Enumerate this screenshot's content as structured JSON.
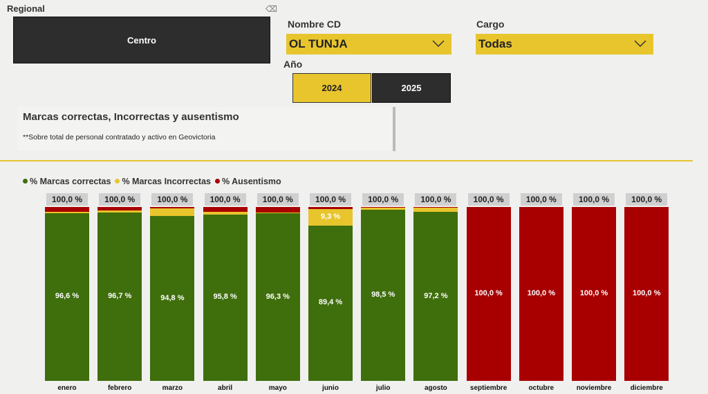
{
  "filters": {
    "regional": {
      "label": "Regional",
      "value": "Centro"
    },
    "nombre_cd": {
      "label": "Nombre CD",
      "value": "OL TUNJA"
    },
    "cargo": {
      "label": "Cargo",
      "value": "Todas"
    },
    "anio": {
      "label": "Año",
      "options": [
        "2024",
        "2025"
      ],
      "selected": "2024"
    }
  },
  "card": {
    "title": "Marcas correctas, Incorrectas y ausentismo",
    "subtitle": "**Sobre total de personal contratado y activo en Geovictoria"
  },
  "colors": {
    "correctas": "#3f6e0c",
    "incorrectas": "#e8c52d",
    "ausentismo": "#a80000"
  },
  "chart_data": {
    "type": "bar",
    "stacked": true,
    "legend_position": "top-left",
    "categories": [
      "enero",
      "febrero",
      "marzo",
      "abril",
      "mayo",
      "junio",
      "julio",
      "agosto",
      "septiembre",
      "octubre",
      "noviembre",
      "diciembre"
    ],
    "series": [
      {
        "name": "% Marcas correctas",
        "values": [
          96.6,
          96.7,
          94.8,
          95.8,
          96.3,
          89.4,
          98.5,
          97.2,
          0,
          0,
          0,
          0
        ]
      },
      {
        "name": "% Marcas Incorrectas",
        "values": [
          0.6,
          1.3,
          4.6,
          1.4,
          0.7,
          9.3,
          1.2,
          2.5,
          0,
          0,
          0,
          0
        ]
      },
      {
        "name": "% Ausentismo",
        "values": [
          2.8,
          2.0,
          0.6,
          2.8,
          3.0,
          1.3,
          0.3,
          0.3,
          100,
          100,
          100,
          100
        ]
      }
    ],
    "data_labels": {
      "correctas": [
        "96,6 %",
        "96,7 %",
        "94,8 %",
        "95,8 %",
        "96,3 %",
        "89,4 %",
        "98,5 %",
        "97,2 %",
        "",
        "",
        "",
        ""
      ],
      "incorrectas": [
        "",
        "",
        "",
        "",
        "",
        "9,3 %",
        "",
        "",
        "",
        "",
        "",
        ""
      ],
      "ausentismo": [
        "",
        "",
        "",
        "",
        "",
        "",
        "",
        "",
        "100,0 %",
        "100,0 %",
        "100,0 %",
        "100,0 %"
      ]
    },
    "totals": [
      "100,0 %",
      "100,0 %",
      "100,0 %",
      "100,0 %",
      "100,0 %",
      "100,0 %",
      "100,0 %",
      "100,0 %",
      "100,0 %",
      "100,0 %",
      "100,0 %",
      "100,0 %"
    ],
    "ylim": [
      0,
      100
    ]
  }
}
